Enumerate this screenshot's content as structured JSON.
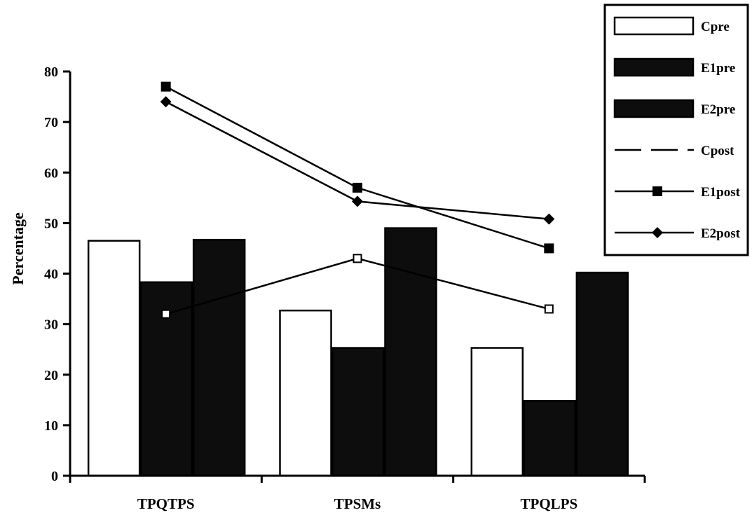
{
  "chart_data": {
    "type": "bar",
    "title": "",
    "xlabel": "",
    "ylabel": "Percentage",
    "ylim": [
      0,
      80
    ],
    "yticks": [
      0,
      10,
      20,
      30,
      40,
      50,
      60,
      70,
      80
    ],
    "categories": [
      "TPQTPS",
      "TPSMs",
      "TPQLPS"
    ],
    "bar_series": [
      {
        "name": "Cpre",
        "fill": "#ffffff",
        "values": [
          46.5,
          32.7,
          25.3
        ]
      },
      {
        "name": "E1pre",
        "fill": "#0d0d0d",
        "values": [
          38.3,
          25.3,
          14.8
        ]
      },
      {
        "name": "E2pre",
        "fill": "#0d0d0d",
        "values": [
          46.7,
          49.0,
          40.2
        ]
      }
    ],
    "line_series": [
      {
        "name": "Cpost",
        "marker": "open-square",
        "values": [
          32,
          43,
          33
        ]
      },
      {
        "name": "E1post",
        "marker": "square",
        "values": [
          77,
          57,
          45
        ]
      },
      {
        "name": "E2post",
        "marker": "diamond",
        "values": [
          74,
          54.3,
          50.8
        ]
      }
    ],
    "grid": false,
    "legend_position": "top-right"
  }
}
